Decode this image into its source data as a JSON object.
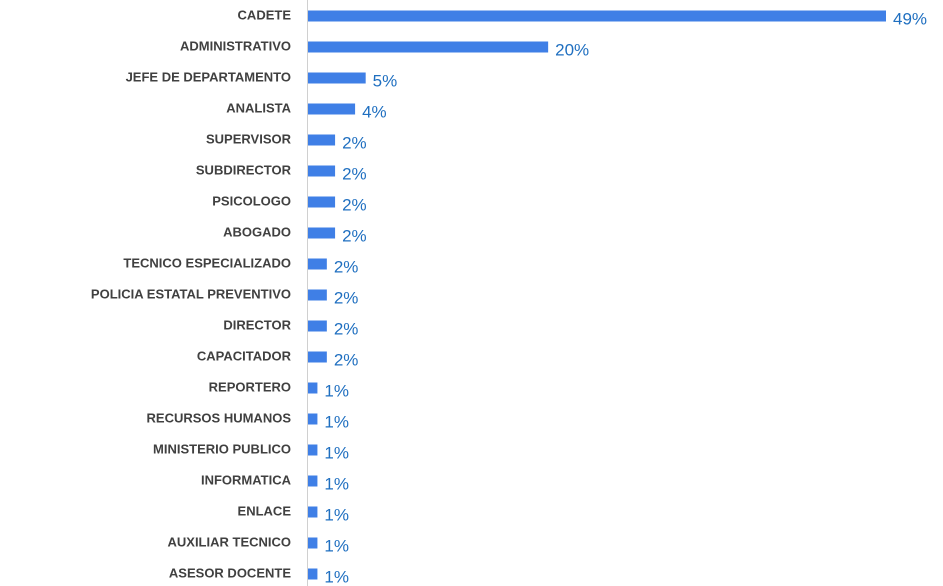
{
  "chart_data": {
    "type": "barh",
    "categories": [
      "CADETE",
      "ADMINISTRATIVO",
      "JEFE DE DEPARTAMENTO",
      "ANALISTA",
      "SUPERVISOR",
      "SUBDIRECTOR",
      "PSICOLOGO",
      "ABOGADO",
      "TECNICO ESPECIALIZADO",
      "POLICIA ESTATAL PREVENTIVO",
      "DIRECTOR",
      "CAPACITADOR",
      "REPORTERO",
      "RECURSOS HUMANOS",
      "MINISTERIO PUBLICO",
      "INFORMATICA",
      "ENLACE",
      "AUXILIAR TECNICO",
      "ASESOR DOCENTE"
    ],
    "values": [
      49.1,
      20.4,
      4.9,
      4.0,
      2.3,
      2.3,
      2.3,
      2.3,
      1.6,
      1.6,
      1.6,
      1.6,
      0.8,
      0.8,
      0.8,
      0.8,
      0.8,
      0.8,
      0.8
    ],
    "value_labels": [
      "49%",
      "20%",
      "5%",
      "4%",
      "2%",
      "2%",
      "2%",
      "2%",
      "2%",
      "2%",
      "2%",
      "2%",
      "1%",
      "1%",
      "1%",
      "1%",
      "1%",
      "1%",
      "1%"
    ],
    "color": "#3f7fe6"
  }
}
